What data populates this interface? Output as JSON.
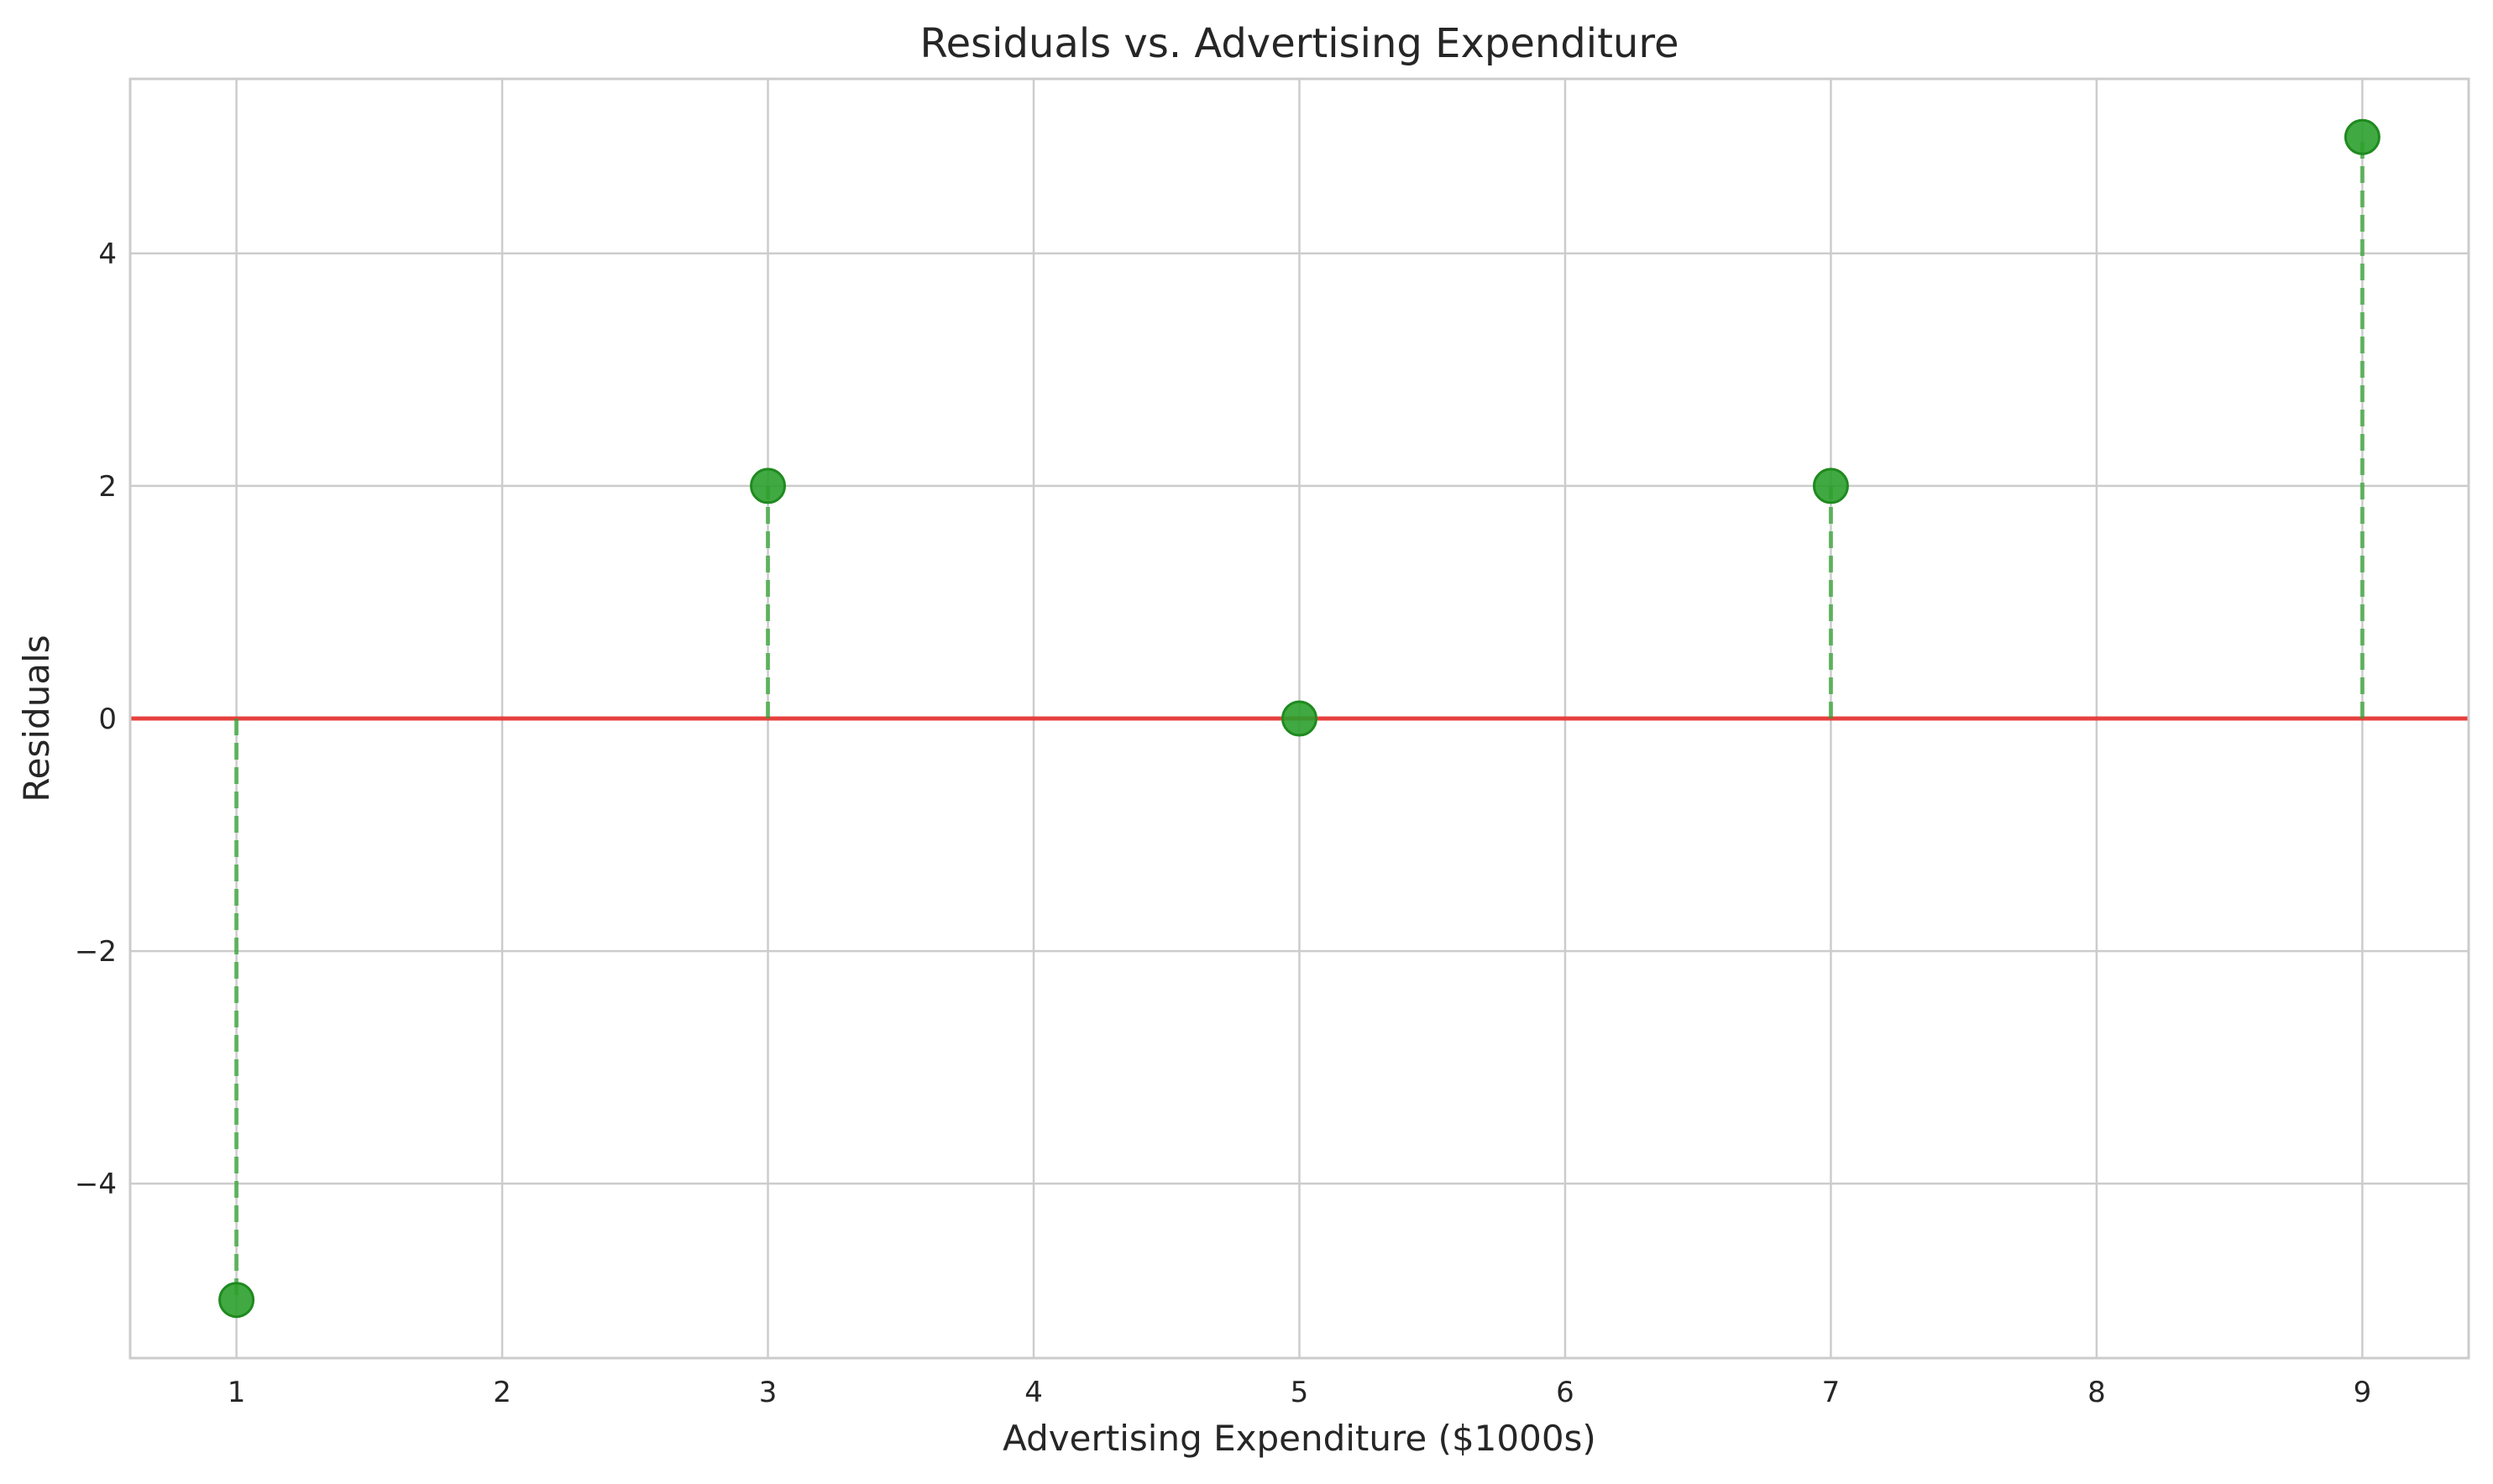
{
  "chart_data": {
    "type": "scatter",
    "title": "Residuals vs. Advertising Expenditure",
    "xlabel": "Advertising Expenditure ($1000s)",
    "ylabel": "Residuals",
    "x": [
      1,
      3,
      5,
      7,
      9
    ],
    "series": [
      {
        "values": [
          -5,
          2,
          0,
          2,
          5
        ],
        "color": "#2ca02c",
        "marker": "circle",
        "stem_style": "dashed"
      }
    ],
    "reference_line": {
      "y": 0,
      "color": "#e8302e"
    },
    "xlim": [
      0.6,
      9.4
    ],
    "ylim": [
      -5.5,
      5.5
    ],
    "xticks": [
      1,
      2,
      3,
      4,
      5,
      6,
      7,
      8,
      9
    ],
    "yticks": [
      -4,
      -2,
      0,
      2,
      4
    ],
    "ytick_labels": [
      "−4",
      "−2",
      "0",
      "2",
      "4"
    ],
    "grid": true
  }
}
